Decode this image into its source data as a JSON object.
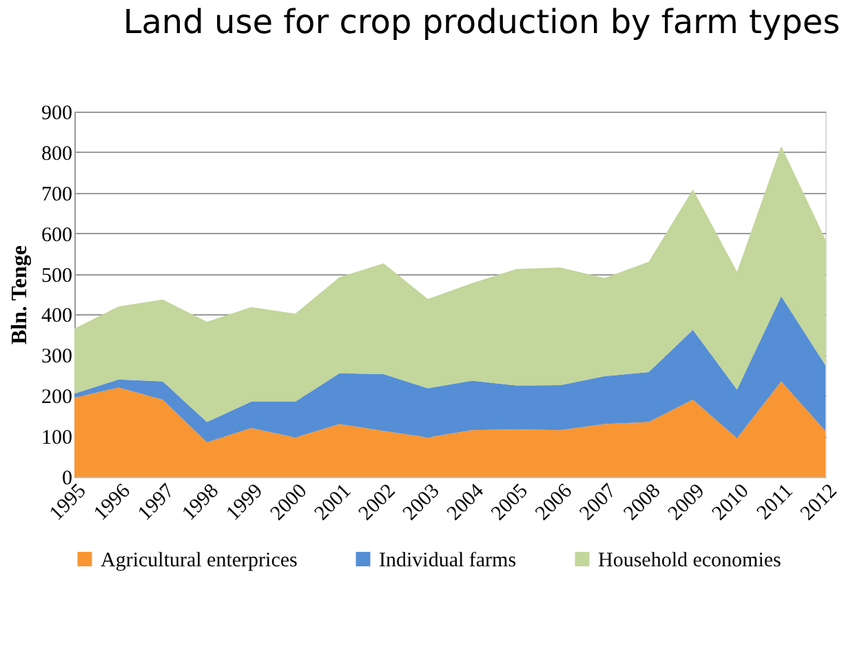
{
  "chart_data": {
    "type": "area",
    "title": "Land use for crop production by farm types",
    "ylabel": "Bln. Tenge",
    "stacked": true,
    "categories": [
      "1995",
      "1996",
      "1997",
      "1998",
      "1999",
      "2000",
      "2001",
      "2002",
      "2003",
      "2004",
      "2005",
      "2006",
      "2007",
      "2008",
      "2009",
      "2010",
      "2011",
      "2012"
    ],
    "series": [
      {
        "name": "Agricultural enterprices",
        "color": "#f79633",
        "values": [
          195,
          220,
          190,
          85,
          120,
          97,
          130,
          113,
          97,
          115,
          117,
          115,
          130,
          135,
          190,
          95,
          235,
          113
        ]
      },
      {
        "name": "Individual farms",
        "color": "#558ed5",
        "values": [
          10,
          20,
          45,
          50,
          65,
          88,
          125,
          140,
          121,
          122,
          108,
          111,
          118,
          123,
          172,
          120,
          210,
          162
        ]
      },
      {
        "name": "Household economies",
        "color": "#c3d69b",
        "values": [
          160,
          180,
          202,
          247,
          233,
          217,
          237,
          273,
          220,
          240,
          287,
          290,
          242,
          272,
          346,
          290,
          370,
          310
        ]
      }
    ],
    "ylim": [
      0,
      900
    ],
    "yticks": [
      0,
      100,
      200,
      300,
      400,
      500,
      600,
      700,
      800,
      900
    ],
    "grid": "y",
    "legend": "bottom"
  }
}
